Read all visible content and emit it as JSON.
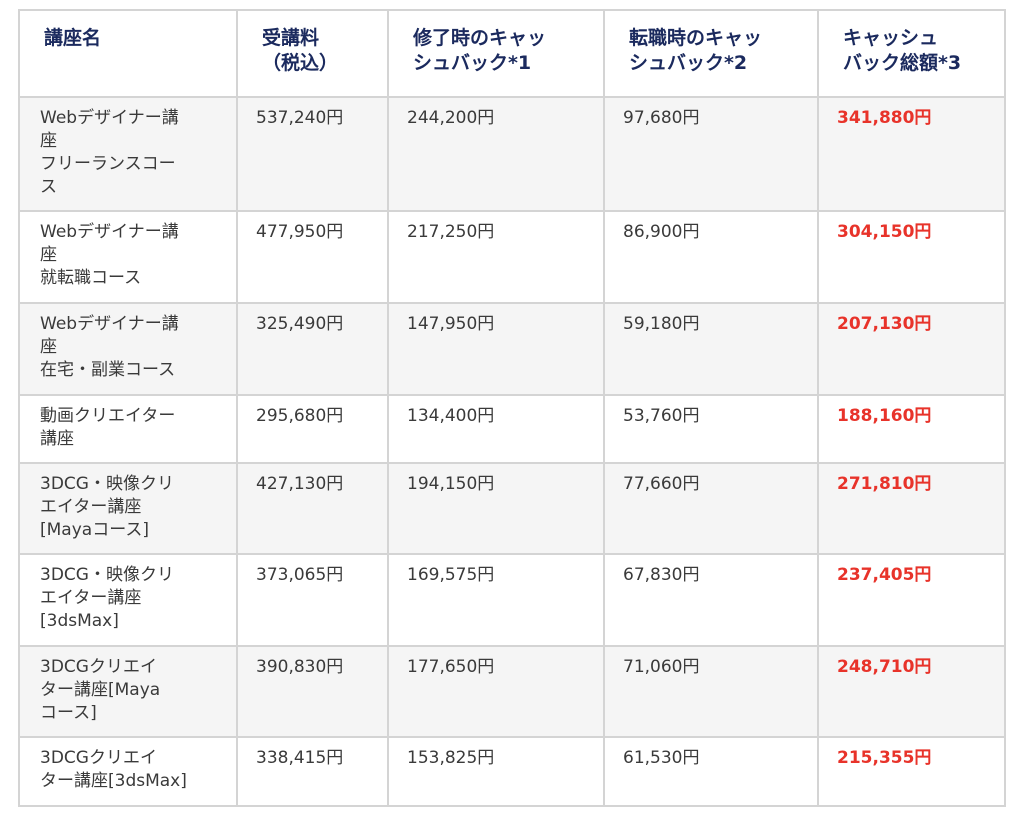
{
  "table": {
    "headers": {
      "course_name": "講座名",
      "fee_line1": "受講料",
      "fee_line2": "（税込）",
      "completion_cashback_line1": "修了時のキャッ",
      "completion_cashback_line2": "シュバック*1",
      "job_change_cashback_line1": "転職時のキャッ",
      "job_change_cashback_line2": "シュバック*2",
      "total_cashback_line1": "キャッシュ",
      "total_cashback_line2": "バック総額*3"
    },
    "rows": [
      {
        "name_lines": [
          "Webデザイナー講",
          "座",
          "フリーランスコー",
          "ス"
        ],
        "fee": "537,240円",
        "completion_cashback": "244,200円",
        "job_change_cashback": "97,680円",
        "total_cashback": "341,880円"
      },
      {
        "name_lines": [
          "Webデザイナー講",
          "座",
          "就転職コース"
        ],
        "fee": "477,950円",
        "completion_cashback": "217,250円",
        "job_change_cashback": "86,900円",
        "total_cashback": "304,150円"
      },
      {
        "name_lines": [
          "Webデザイナー講",
          "座",
          "在宅・副業コース"
        ],
        "fee": "325,490円",
        "completion_cashback": "147,950円",
        "job_change_cashback": "59,180円",
        "total_cashback": "207,130円"
      },
      {
        "name_lines": [
          "動画クリエイター",
          "講座"
        ],
        "fee": "295,680円",
        "completion_cashback": "134,400円",
        "job_change_cashback": "53,760円",
        "total_cashback": "188,160円"
      },
      {
        "name_lines": [
          "3DCG・映像クリ",
          "エイター講座",
          "[Mayaコース]"
        ],
        "fee": "427,130円",
        "completion_cashback": "194,150円",
        "job_change_cashback": "77,660円",
        "total_cashback": "271,810円"
      },
      {
        "name_lines": [
          "3DCG・映像クリ",
          "エイター講座",
          "[3dsMax]"
        ],
        "fee": "373,065円",
        "completion_cashback": "169,575円",
        "job_change_cashback": "67,830円",
        "total_cashback": "237,405円"
      },
      {
        "name_lines": [
          "3DCGクリエイ",
          "ター講座[Maya",
          "コース]"
        ],
        "fee": "390,830円",
        "completion_cashback": "177,650円",
        "job_change_cashback": "71,060円",
        "total_cashback": "248,710円"
      },
      {
        "name_lines": [
          "3DCGクリエイ",
          "ター講座[3dsMax]"
        ],
        "fee": "338,415円",
        "completion_cashback": "153,825円",
        "job_change_cashback": "61,530円",
        "total_cashback": "215,355円"
      }
    ]
  },
  "colors": {
    "header_text": "#1b2a5e",
    "body_text": "#3a3a3a",
    "total_highlight": "#e8332a",
    "border": "#d4d4d4",
    "stripe_bg": "#f5f5f5"
  }
}
